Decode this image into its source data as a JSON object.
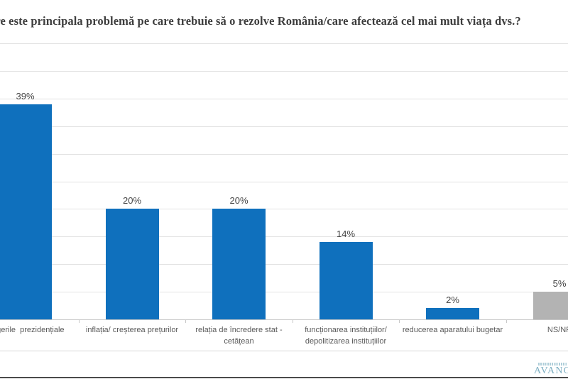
{
  "title": "Care este principala problemă pe care trebuie să o rezolve România/care afectează cel mai mult viața dvs.?",
  "chart_data": {
    "type": "bar",
    "title": "Care este principala problemă pe care trebuie să o rezolve România/care afectează cel mai mult viața dvs.?",
    "categories": [
      "alegerile  prezidențiale",
      "inflația/ creșterea prețurilor",
      "relația de încredere stat -\ncetățean",
      "funcționarea instituțiilor/\ndepolitizarea instituțiilor",
      "reducerea aparatului bugetar",
      "NS/NR"
    ],
    "values": [
      39,
      20,
      20,
      14,
      2,
      5
    ],
    "value_labels": [
      "39%",
      "20%",
      "20%",
      "14%",
      "2%",
      "5%"
    ],
    "bar_colors": [
      "#0f70bd",
      "#0f70bd",
      "#0f70bd",
      "#0f70bd",
      "#0f70bd",
      "#b3b3b3"
    ],
    "xlabel": "",
    "ylabel": "",
    "ylim": [
      0,
      50
    ],
    "gridline_step_pct": 5,
    "grid": true,
    "legend": false,
    "data_labels": true
  },
  "footer": {
    "logo_text": "AVANGARDE"
  },
  "colors": {
    "bar_blue": "#0f70bd",
    "bar_gray": "#b3b3b3",
    "gridline": "#e2e2e2",
    "axis": "#c8c8c8",
    "tick": "#c8c8c8",
    "title_text": "#3d3d3d",
    "value_text": "#444444",
    "category_text": "#595959",
    "footer_separator": "#d8d8d8",
    "bottom_line": "#4a4a4a",
    "logo_teal": "#7fb0c3"
  }
}
